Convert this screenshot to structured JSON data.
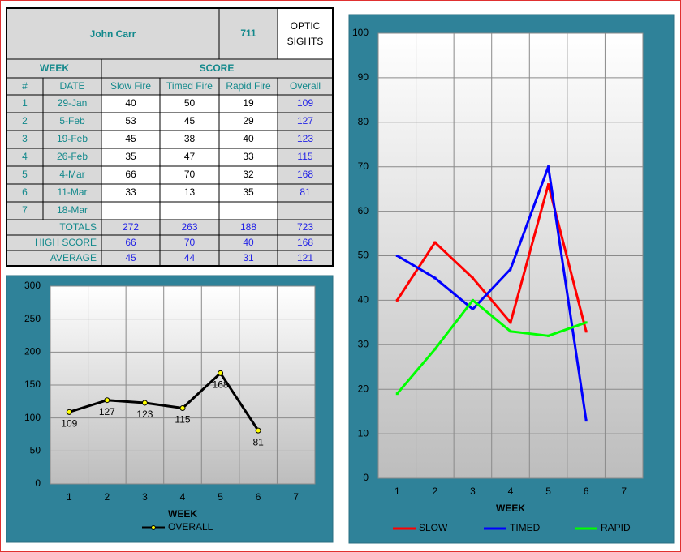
{
  "table": {
    "title": "John Carr",
    "id": "711",
    "division": [
      "OPTIC",
      "SIGHTS"
    ],
    "group_headers": [
      "WEEK",
      "SCORE"
    ],
    "columns": [
      "#",
      "DATE",
      "Slow Fire",
      "Timed Fire",
      "Rapid Fire",
      "Overall"
    ],
    "rows": [
      [
        1,
        "29-Jan",
        40,
        50,
        19,
        109
      ],
      [
        2,
        "5-Feb",
        53,
        45,
        29,
        127
      ],
      [
        3,
        "19-Feb",
        45,
        38,
        40,
        123
      ],
      [
        4,
        "26-Feb",
        35,
        47,
        33,
        115
      ],
      [
        5,
        "4-Mar",
        66,
        70,
        32,
        168
      ],
      [
        6,
        "11-Mar",
        33,
        13,
        35,
        81
      ],
      [
        7,
        "18-Mar"
      ]
    ],
    "summary": [
      {
        "label": "TOTALS",
        "values": [
          272,
          263,
          188,
          723
        ]
      },
      {
        "label": "HIGH SCORE",
        "values": [
          66,
          70,
          40,
          168
        ]
      },
      {
        "label": "AVERAGE",
        "values": [
          45,
          44,
          31,
          121
        ]
      }
    ]
  },
  "chart_data": [
    {
      "type": "line",
      "xlabel": "WEEK",
      "categories": [
        1,
        2,
        3,
        4,
        5,
        6,
        7
      ],
      "series": [
        {
          "name": "OVERALL",
          "color": "#000000",
          "marker_color": "#ffff00",
          "values": [
            109,
            127,
            123,
            115,
            168,
            81,
            null
          ]
        }
      ],
      "data_labels": true,
      "ylim": [
        0,
        300
      ],
      "yticks": [
        0,
        50,
        100,
        150,
        200,
        250,
        300
      ],
      "grid": true,
      "legend": "bottom"
    },
    {
      "type": "line",
      "xlabel": "WEEK",
      "categories": [
        1,
        2,
        3,
        4,
        5,
        6,
        7
      ],
      "series": [
        {
          "name": "SLOW",
          "color": "#ff0000",
          "values": [
            40,
            53,
            45,
            35,
            66,
            33,
            null
          ]
        },
        {
          "name": "TIMED",
          "color": "#0000ff",
          "values": [
            50,
            45,
            38,
            47,
            70,
            13,
            null
          ]
        },
        {
          "name": "RAPID",
          "color": "#00ff00",
          "values": [
            19,
            29,
            40,
            33,
            32,
            35,
            null
          ]
        }
      ],
      "data_labels": false,
      "ylim": [
        0,
        100
      ],
      "yticks": [
        0,
        10,
        20,
        30,
        40,
        50,
        60,
        70,
        80,
        90,
        100
      ],
      "grid": true,
      "legend": "bottom"
    }
  ]
}
